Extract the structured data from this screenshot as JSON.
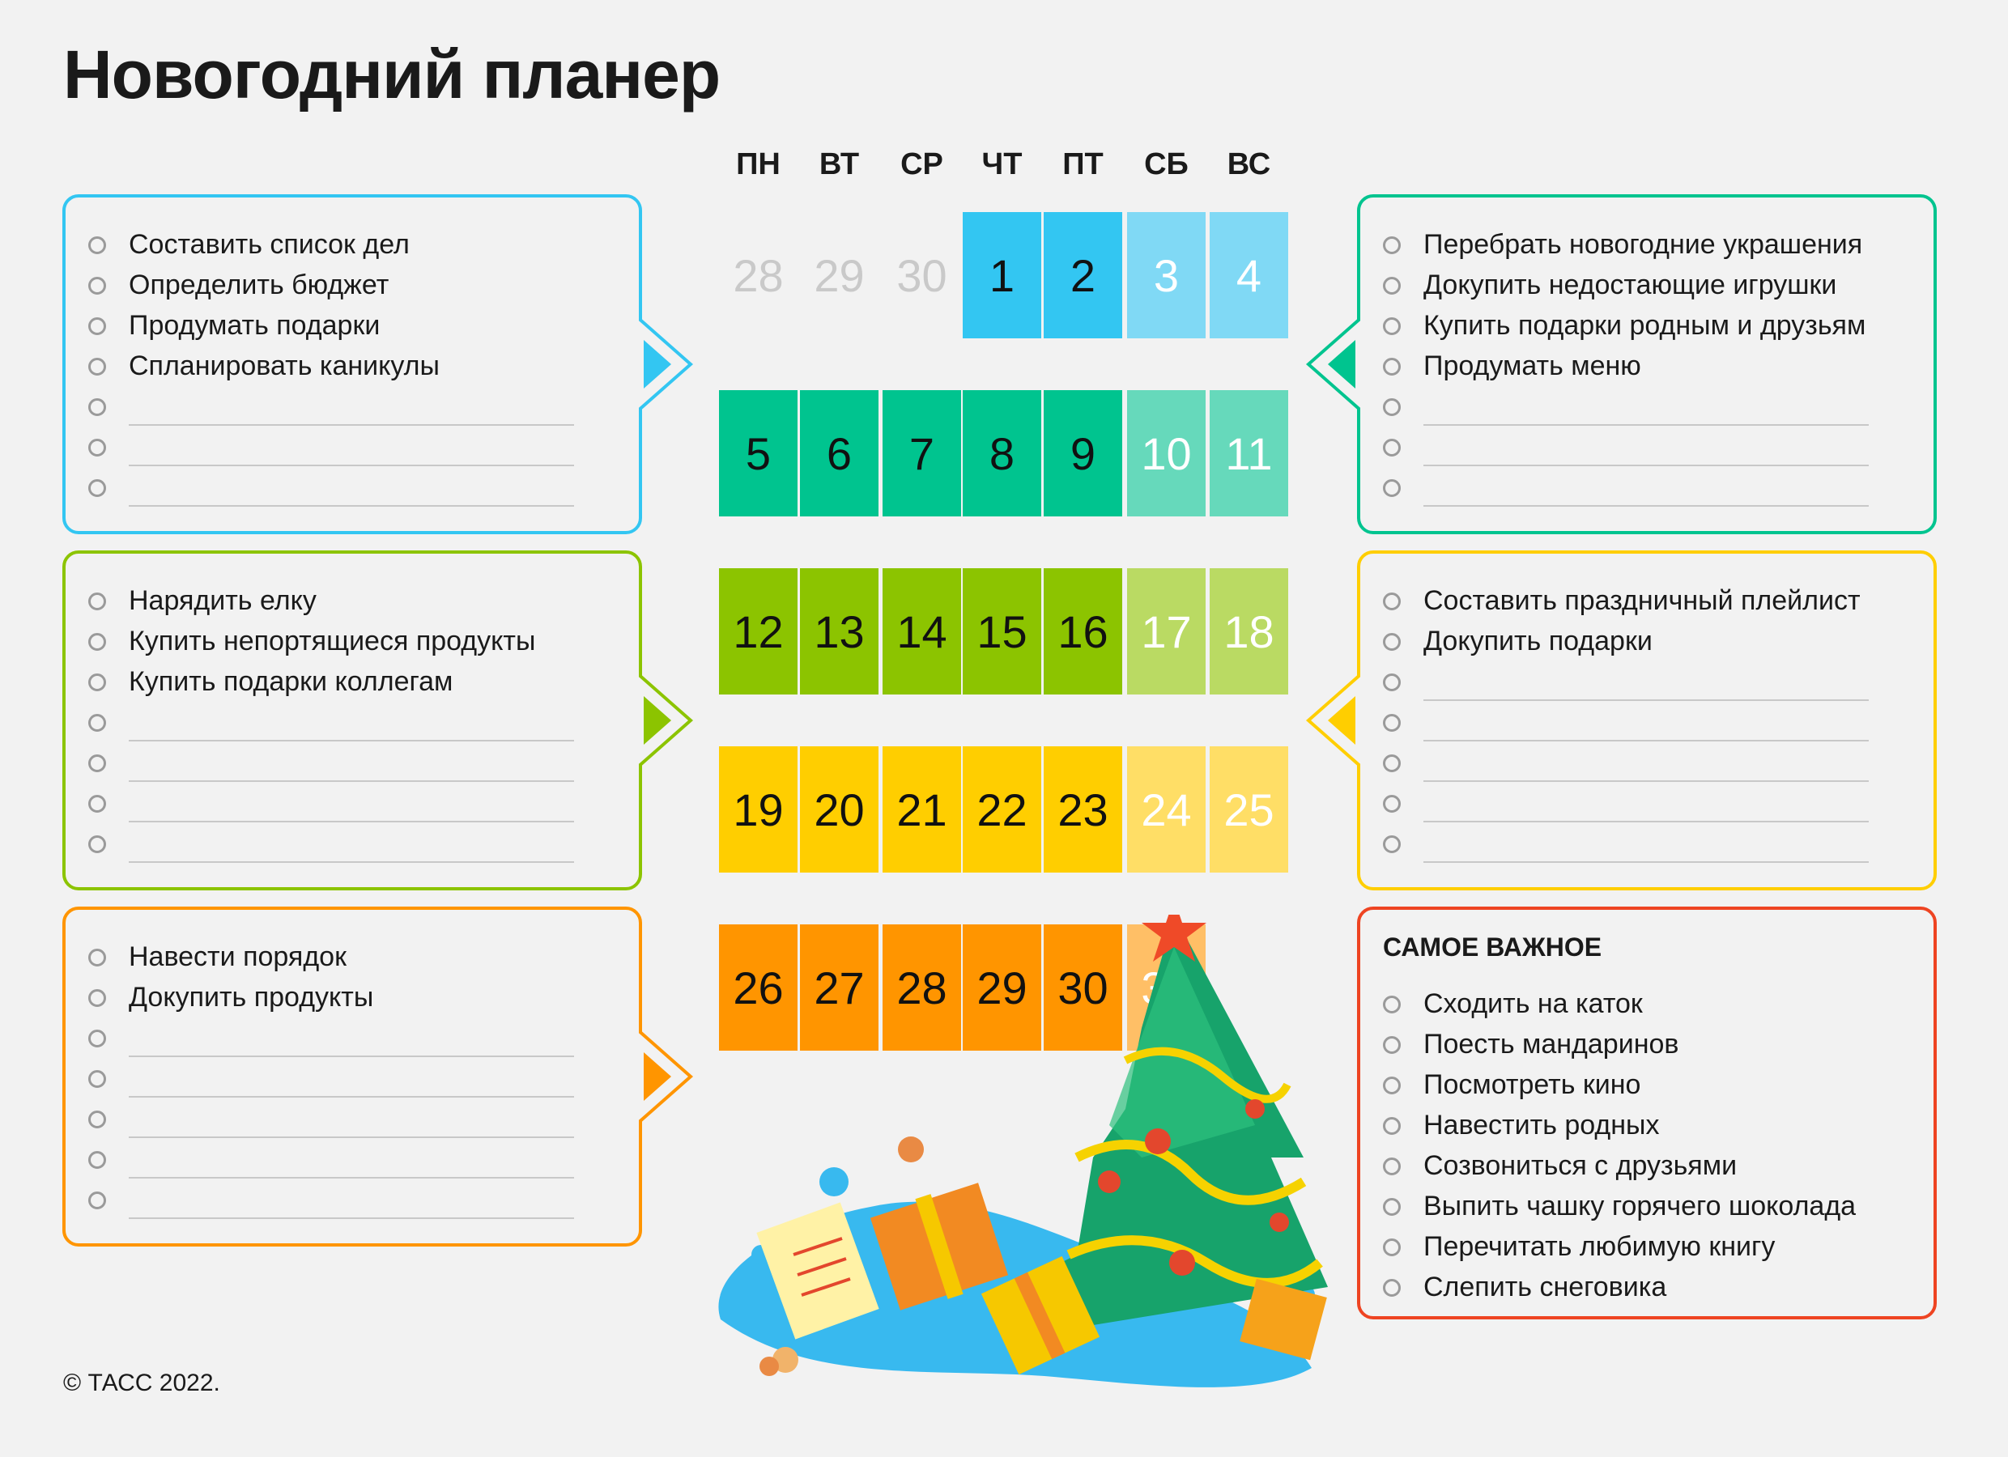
{
  "title": "Новогодний планер",
  "copyright": "© ТАСС 2022.",
  "days_of_week": [
    "ПН",
    "ВТ",
    "СР",
    "ЧТ",
    "ПТ",
    "СБ",
    "ВС"
  ],
  "weeks": [
    {
      "color": "#33c6f2",
      "weekend_color": "#80d9f5",
      "days": [
        "28",
        "29",
        "30",
        "1",
        "2",
        "3",
        "4"
      ],
      "prev_month": [
        0,
        1,
        2
      ]
    },
    {
      "color": "#00c48f",
      "weekend_color": "#66d9bb",
      "days": [
        "5",
        "6",
        "7",
        "8",
        "9",
        "10",
        "11"
      ],
      "prev_month": []
    },
    {
      "color": "#8cc400",
      "weekend_color": "#bada63",
      "days": [
        "12",
        "13",
        "14",
        "15",
        "16",
        "17",
        "18"
      ],
      "prev_month": []
    },
    {
      "color": "#ffce00",
      "weekend_color": "#ffde66",
      "days": [
        "19",
        "20",
        "21",
        "22",
        "23",
        "24",
        "25"
      ],
      "prev_month": []
    },
    {
      "color": "#ff9500",
      "weekend_color": "#ffbf66",
      "days": [
        "26",
        "27",
        "28",
        "29",
        "30",
        "31"
      ],
      "prev_month": []
    }
  ],
  "panels": {
    "p1": {
      "color": "#33c6f2",
      "tasks": [
        "Составить список дел",
        "Определить бюджет",
        "Продумать подарки",
        "Спланировать каникулы",
        "",
        "",
        ""
      ]
    },
    "p2": {
      "color": "#00c48f",
      "tasks": [
        "Перебрать новогодние украшения",
        "Докупить недостающие игрушки",
        "Купить подарки родным и друзьям",
        "Продумать меню",
        "",
        "",
        ""
      ]
    },
    "p3": {
      "color": "#8cc400",
      "tasks": [
        "Нарядить елку",
        "Купить непортящиеся продукты",
        "Купить подарки коллегам",
        "",
        "",
        "",
        ""
      ]
    },
    "p4": {
      "color": "#ffce00",
      "tasks": [
        "Составить праздничный плейлист",
        "Докупить подарки",
        "",
        "",
        "",
        "",
        ""
      ]
    },
    "p5": {
      "color": "#ff9500",
      "tasks": [
        "Навести порядок",
        "Докупить продукты",
        "",
        "",
        "",
        "",
        ""
      ]
    },
    "p6": {
      "color": "#ee4422",
      "title": "САМОЕ ВАЖНОЕ",
      "tasks": [
        "Сходить на каток",
        "Поесть мандаринов",
        "Посмотреть кино",
        "Навестить родных",
        "Созвониться с друзьями",
        "Выпить чашку горячего шоколада",
        "Перечитать любимую книгу",
        "Слепить снеговика"
      ]
    }
  }
}
